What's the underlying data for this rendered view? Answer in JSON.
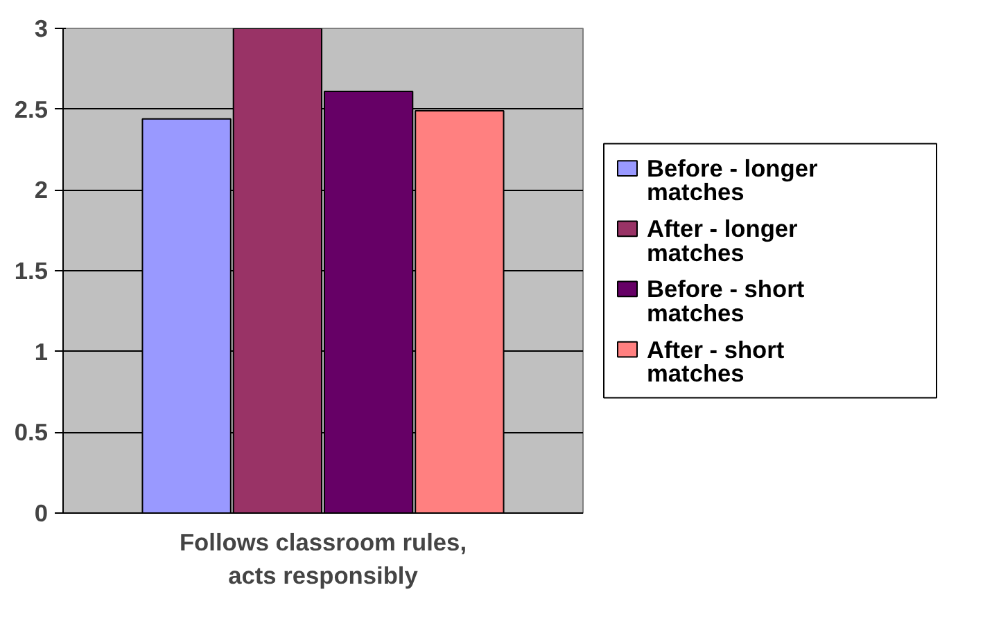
{
  "chart_data": {
    "type": "bar",
    "categories": [
      "Follows classroom rules, acts responsibly"
    ],
    "series": [
      {
        "name": "Before - longer matches",
        "color": "#9999ff",
        "values": [
          2.44
        ]
      },
      {
        "name": "After - longer matches",
        "color": "#993366",
        "values": [
          3.0
        ]
      },
      {
        "name": "Before - short matches",
        "color": "#660066",
        "values": [
          2.61
        ]
      },
      {
        "name": "After - short matches",
        "color": "#ff8080",
        "values": [
          2.49
        ]
      }
    ],
    "ylim": [
      0,
      3
    ],
    "yticks": [
      0,
      0.5,
      1,
      1.5,
      2,
      2.5,
      3
    ],
    "grid": "y",
    "legend": "right"
  }
}
